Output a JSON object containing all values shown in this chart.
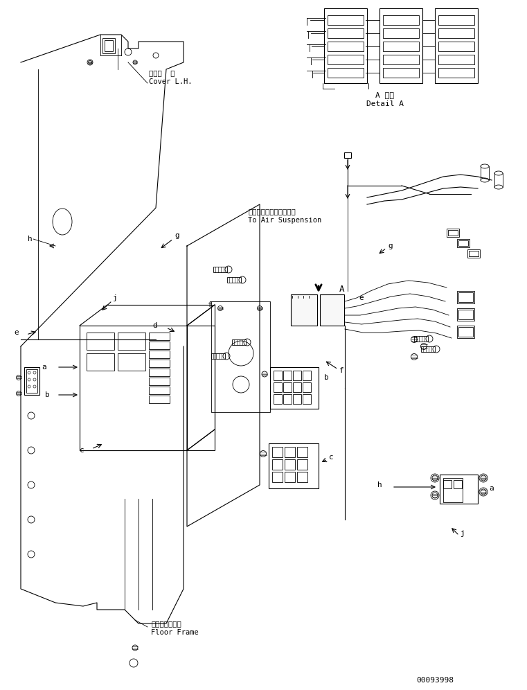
{
  "bg_color": "#ffffff",
  "line_color": "#000000",
  "fig_width": 7.61,
  "fig_height": 9.96,
  "dpi": 100,
  "part_number": "00093998",
  "labels": {
    "cover_lh_jp": "カバー  左",
    "cover_lh_en": "Cover L.H.",
    "air_sus_jp": "エアーサスペンションへ",
    "air_sus_en": "To Air Suspension",
    "floor_frame_jp": "フロアフレーム",
    "floor_frame_en": "Floor Frame",
    "detail_a_jp": "A 詳細",
    "detail_a_en": "Detail A"
  }
}
